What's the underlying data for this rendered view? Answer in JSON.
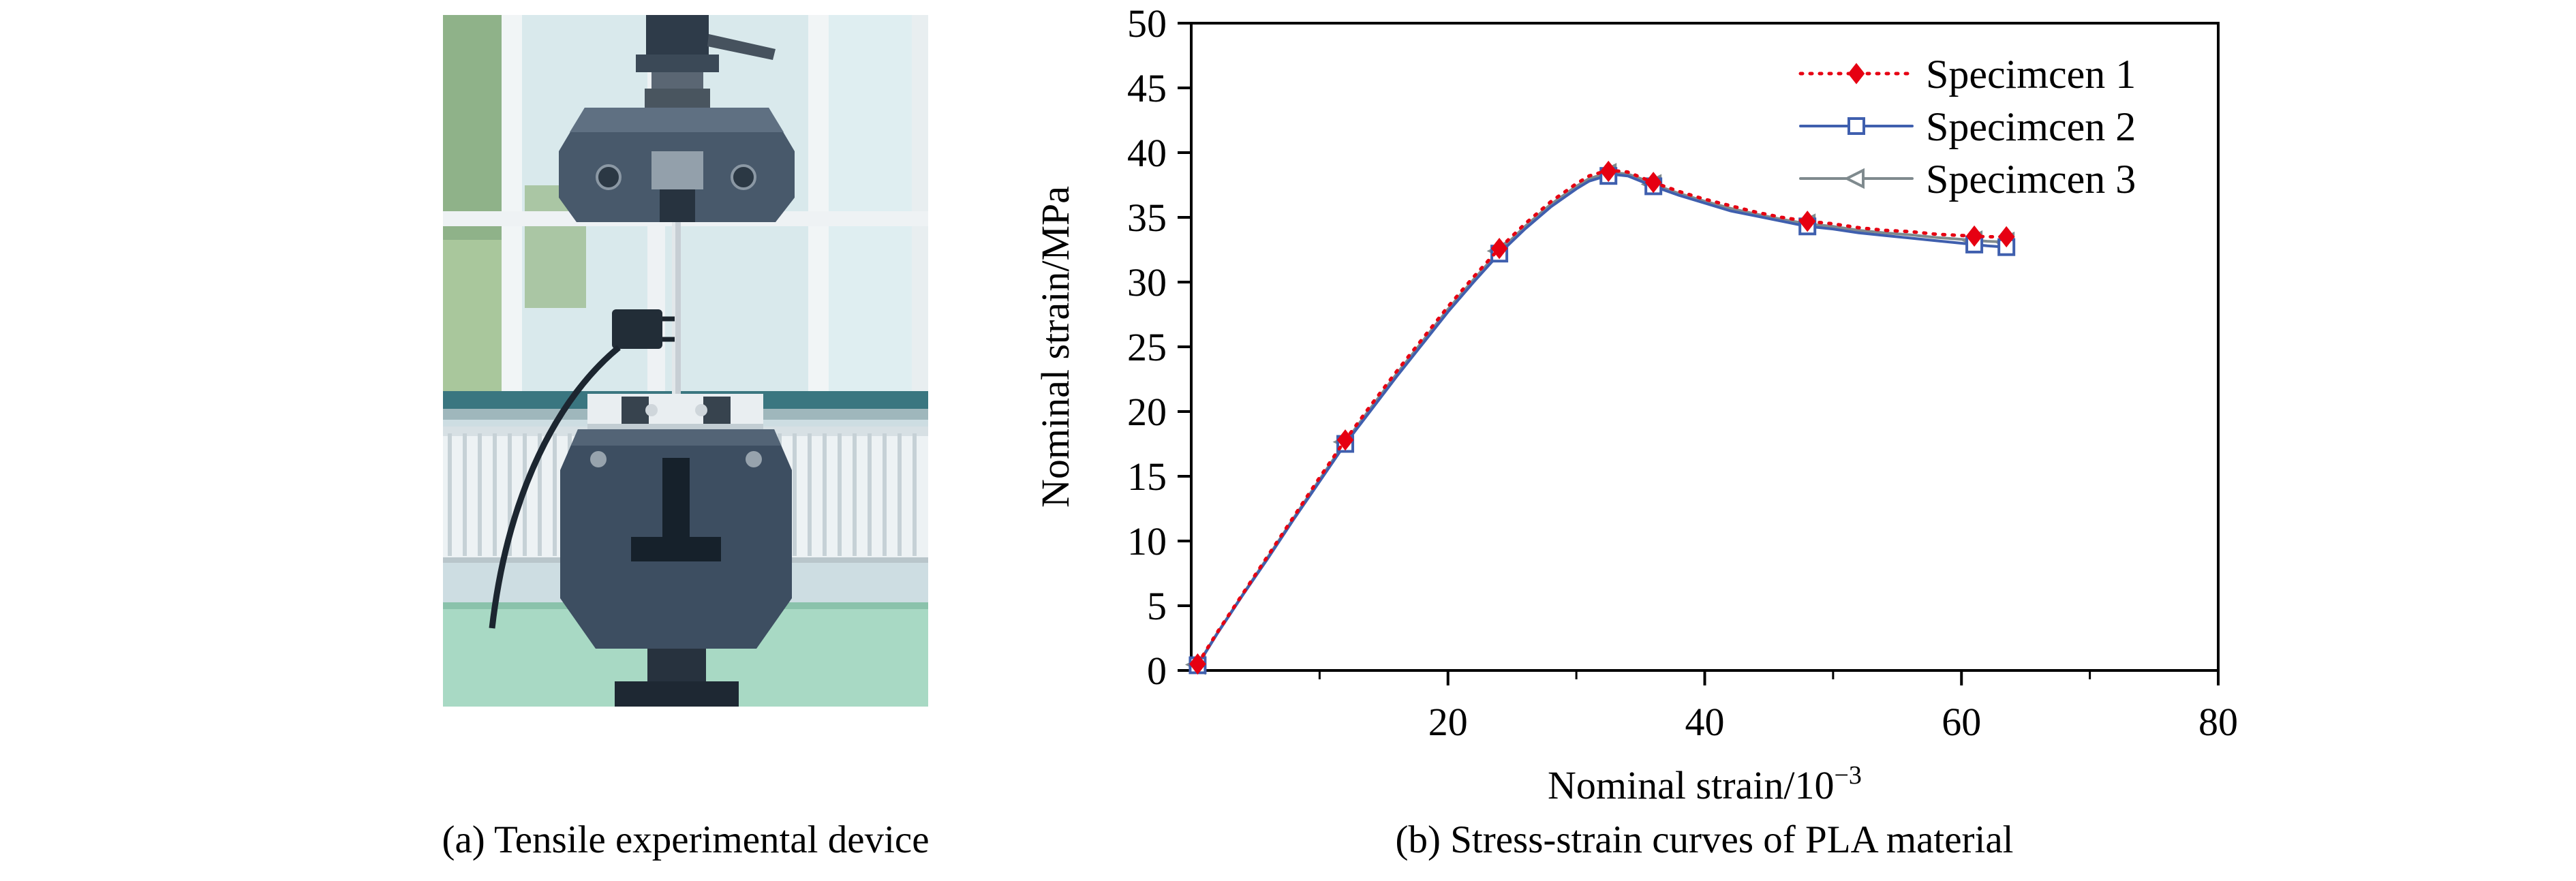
{
  "captions": {
    "panel_a": "(a) Tensile experimental device",
    "panel_b": "(b) Stress-strain curves of PLA material"
  },
  "chart_data": {
    "type": "line",
    "title": "",
    "xlabel_main": "Nominal strain/10",
    "xlabel_superscript": "−3",
    "ylabel": "Nominal strain/MPa",
    "xlim": [
      0,
      80
    ],
    "ylim": [
      0,
      50
    ],
    "xticks": [
      20,
      40,
      60,
      80
    ],
    "xticks_minor": [
      10,
      30,
      50,
      70
    ],
    "yticks": [
      0,
      5,
      10,
      15,
      20,
      25,
      30,
      35,
      40,
      45,
      50
    ],
    "grid": false,
    "frame_color": "#000000",
    "legend_position": "top-right-inside",
    "series": [
      {
        "name": "Specimcen 1",
        "color": "#e60012",
        "line_style": "dotted",
        "marker": "diamond-filled",
        "x": [
          0.5,
          2,
          4,
          6,
          8,
          10,
          12,
          14,
          16,
          18,
          20,
          22,
          24,
          26,
          28,
          30,
          31,
          32,
          33,
          34,
          35,
          36,
          38,
          40,
          42,
          44,
          46,
          48,
          50,
          52,
          54,
          56,
          58,
          60,
          62,
          63.5
        ],
        "y": [
          0.5,
          2.9,
          5.9,
          8.9,
          11.9,
          14.9,
          17.8,
          20.5,
          23.1,
          25.6,
          28.1,
          30.4,
          32.6,
          34.5,
          36.2,
          37.6,
          38.2,
          38.5,
          38.6,
          38.5,
          38.1,
          37.7,
          37.0,
          36.4,
          35.9,
          35.4,
          35.0,
          34.7,
          34.5,
          34.2,
          34.0,
          33.9,
          33.7,
          33.6,
          33.5,
          33.5
        ],
        "marker_points": {
          "x": [
            0.5,
            12,
            24,
            32.5,
            36,
            48,
            61,
            63.5
          ],
          "y": [
            0.5,
            17.8,
            32.6,
            38.55,
            37.7,
            34.7,
            33.55,
            33.5
          ]
        }
      },
      {
        "name": "Specimcen 2",
        "color": "#3f5fae",
        "line_style": "solid",
        "marker": "square-open",
        "x": [
          0.5,
          2,
          4,
          6,
          8,
          10,
          12,
          14,
          16,
          18,
          20,
          22,
          24,
          26,
          28,
          30,
          31,
          32,
          33,
          34,
          35,
          36,
          38,
          40,
          42,
          44,
          46,
          48,
          50,
          52,
          54,
          56,
          58,
          60,
          62,
          63.5
        ],
        "y": [
          0.4,
          2.8,
          5.8,
          8.7,
          11.7,
          14.6,
          17.5,
          20.1,
          22.7,
          25.2,
          27.7,
          30.0,
          32.2,
          34.1,
          35.8,
          37.2,
          37.8,
          38.1,
          38.3,
          38.2,
          37.8,
          37.4,
          36.7,
          36.1,
          35.5,
          35.1,
          34.7,
          34.3,
          34.1,
          33.8,
          33.6,
          33.4,
          33.2,
          33.0,
          32.8,
          32.7
        ],
        "marker_points": {
          "x": [
            0.5,
            12,
            24,
            32.5,
            36,
            48,
            61,
            63.5
          ],
          "y": [
            0.4,
            17.5,
            32.2,
            38.2,
            37.4,
            34.3,
            32.9,
            32.7
          ]
        }
      },
      {
        "name": "Specimcen 3",
        "color": "#7f8a8e",
        "line_style": "solid",
        "marker": "triangle-left-open",
        "x": [
          0.5,
          2,
          4,
          6,
          8,
          10,
          12,
          14,
          16,
          18,
          20,
          22,
          24,
          26,
          28,
          30,
          31,
          32,
          33,
          34,
          35,
          36,
          38,
          40,
          42,
          44,
          46,
          48,
          50,
          52,
          54,
          56,
          58,
          60,
          62,
          63.5
        ],
        "y": [
          0.45,
          2.85,
          5.85,
          8.8,
          11.8,
          14.75,
          17.65,
          20.3,
          22.9,
          25.4,
          27.9,
          30.2,
          32.4,
          34.3,
          36.0,
          37.4,
          38.0,
          38.3,
          38.45,
          38.35,
          38.0,
          37.55,
          36.85,
          36.25,
          35.7,
          35.25,
          34.85,
          34.5,
          34.3,
          34.0,
          33.8,
          33.65,
          33.45,
          33.3,
          33.15,
          33.1
        ],
        "marker_points": {
          "x": [
            0.5,
            12,
            24,
            32.5,
            36,
            48,
            61,
            63.5
          ],
          "y": [
            0.45,
            17.65,
            32.4,
            38.4,
            37.55,
            34.5,
            33.2,
            33.1
          ]
        }
      }
    ]
  }
}
